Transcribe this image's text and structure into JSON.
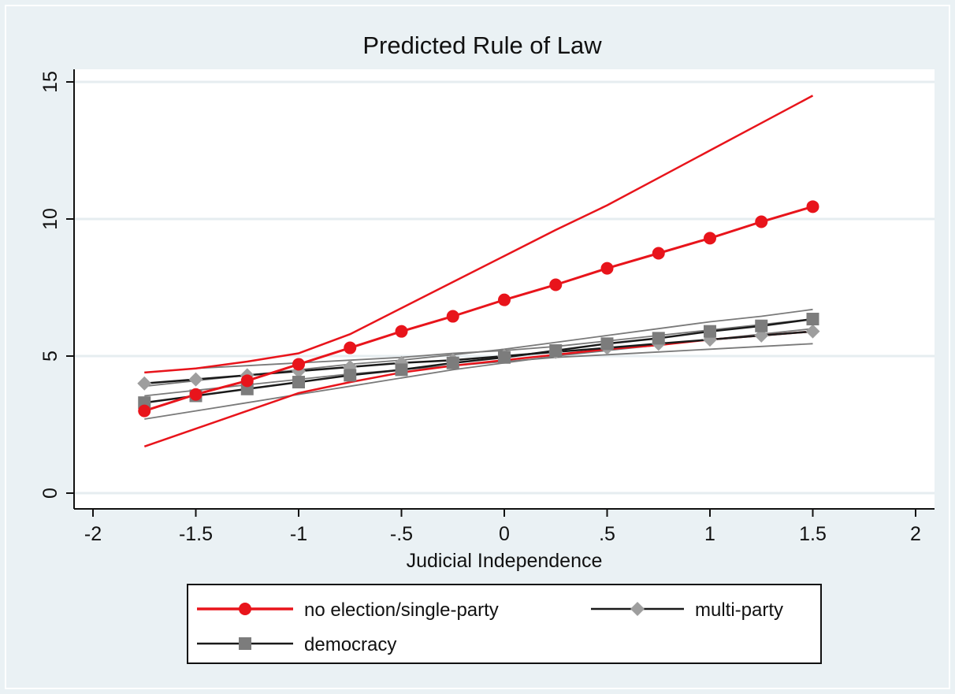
{
  "chart_data": {
    "type": "line",
    "title": "Predicted Rule of Law",
    "xlabel": "Judicial Independence",
    "ylabel": "",
    "xlim": [
      -2,
      2
    ],
    "ylim": [
      0,
      15
    ],
    "x_ticks": [
      -2,
      -1.5,
      -1,
      -0.5,
      0,
      0.5,
      1,
      1.5,
      2
    ],
    "x_tick_labels": [
      "-2",
      "-1.5",
      "-1",
      "-.5",
      "0",
      ".5",
      "1",
      "1.5",
      "2"
    ],
    "y_ticks": [
      0,
      5,
      10,
      15
    ],
    "y_tick_labels": [
      "0",
      "5",
      "10",
      "15"
    ],
    "grid": "horizontal",
    "legend_position": "bottom",
    "x": [
      -1.75,
      -1.5,
      -1.25,
      -1,
      -0.75,
      -0.5,
      -0.25,
      0,
      0.25,
      0.5,
      0.75,
      1,
      1.25,
      1.5
    ],
    "series": [
      {
        "name": "no election/single-party",
        "marker": "circle",
        "line_color": "#e8141b",
        "marker_color": "#e8141b",
        "values": [
          3.0,
          3.6,
          4.1,
          4.7,
          5.3,
          5.9,
          6.45,
          7.05,
          7.6,
          8.2,
          8.75,
          9.3,
          9.9,
          10.45
        ],
        "ci_color": "#e8141b",
        "ci_lower": [
          1.7,
          2.35,
          3.0,
          3.65,
          4.05,
          4.4,
          4.65,
          4.85,
          5.05,
          5.25,
          5.4,
          5.6,
          5.75,
          5.9
        ],
        "ci_upper": [
          4.4,
          4.55,
          4.8,
          5.1,
          5.8,
          6.75,
          7.7,
          8.65,
          9.6,
          10.5,
          11.5,
          12.5,
          13.5,
          14.5
        ]
      },
      {
        "name": "multi-party",
        "marker": "diamond",
        "line_color": "#1a1a1a",
        "marker_color": "#9e9e9e",
        "values": [
          4.0,
          4.15,
          4.3,
          4.45,
          4.6,
          4.75,
          4.85,
          5.0,
          5.15,
          5.3,
          5.45,
          5.6,
          5.75,
          5.9
        ],
        "ci_color": "#7a7a7a",
        "ci_lower": [
          3.55,
          3.75,
          3.95,
          4.15,
          4.35,
          4.5,
          4.65,
          4.8,
          4.95,
          5.05,
          5.15,
          5.25,
          5.35,
          5.45
        ],
        "ci_upper": [
          4.4,
          4.55,
          4.65,
          4.75,
          4.85,
          4.95,
          5.1,
          5.2,
          5.35,
          5.55,
          5.75,
          5.95,
          6.15,
          6.35
        ]
      },
      {
        "name": "democracy",
        "marker": "square",
        "line_color": "#1a1a1a",
        "marker_color": "#7c7c7c",
        "values": [
          3.3,
          3.55,
          3.8,
          4.05,
          4.3,
          4.5,
          4.75,
          4.95,
          5.2,
          5.45,
          5.65,
          5.9,
          6.1,
          6.35
        ],
        "ci_color": "#7a7a7a",
        "ci_lower": [
          2.7,
          3.0,
          3.3,
          3.6,
          3.9,
          4.2,
          4.5,
          4.75,
          5.0,
          5.2,
          5.4,
          5.6,
          5.8,
          6.0
        ],
        "ci_upper": [
          3.9,
          4.1,
          4.3,
          4.5,
          4.7,
          4.85,
          5.05,
          5.25,
          5.5,
          5.75,
          6.0,
          6.25,
          6.45,
          6.7
        ]
      }
    ]
  }
}
